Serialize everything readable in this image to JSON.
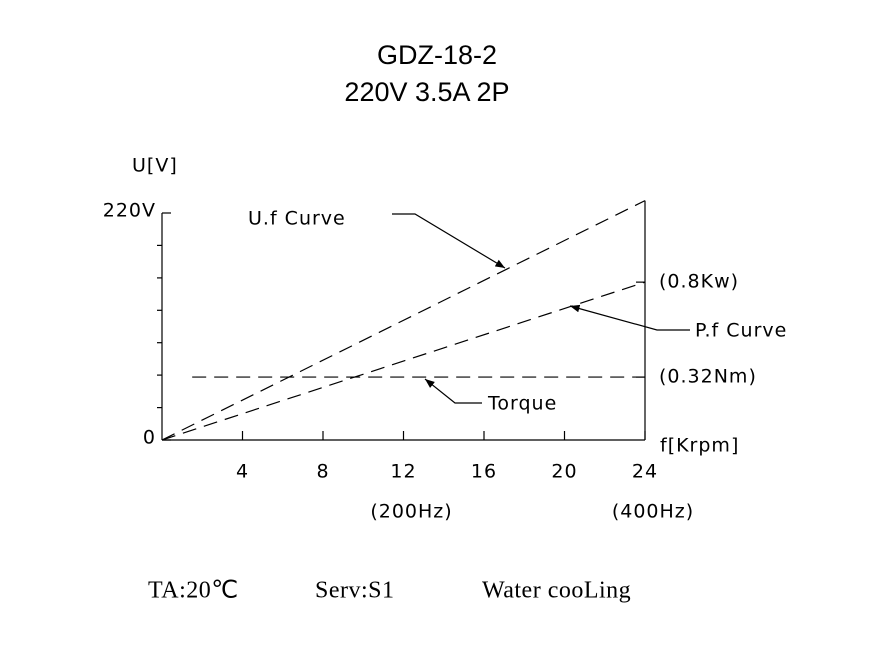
{
  "chart_data": {
    "type": "line",
    "title": "GDZ-18-2",
    "subtitle": "220V  3.5A  2P",
    "y_label": "U[V]",
    "x_label": "f[Krpm]",
    "xlim": [
      0,
      24
    ],
    "ylim": [
      0,
      220
    ],
    "xticks": [
      4,
      8,
      12,
      16,
      20,
      24
    ],
    "yticks": [
      {
        "value": 0,
        "label": "0"
      },
      {
        "value": 220,
        "label": "220V"
      }
    ],
    "yminorticks": [
      31.4,
      62.9,
      94.3,
      125.7,
      157.1,
      188.6
    ],
    "x_sublabels": [
      {
        "value": 12,
        "label": "(200Hz)"
      },
      {
        "value": 24,
        "label": "(400Hz)"
      }
    ],
    "series": [
      {
        "name": "U.f Curve",
        "color": "#000000",
        "dashed": true,
        "x": [
          0,
          24
        ],
        "values": [
          0,
          232
        ]
      },
      {
        "name": "P.f Curve",
        "color": "#000000",
        "dashed": true,
        "x": [
          0,
          24
        ],
        "values": [
          0,
          153
        ],
        "end_label": "(0.8Kw)"
      },
      {
        "name": "Torque",
        "color": "#000000",
        "dashed": true,
        "x": [
          1.5,
          24
        ],
        "values": [
          61,
          61
        ],
        "end_label": "(0.32Nm)"
      }
    ],
    "footer": [
      "TA:20℃",
      "Serv:S1",
      "Water cooLing"
    ]
  }
}
